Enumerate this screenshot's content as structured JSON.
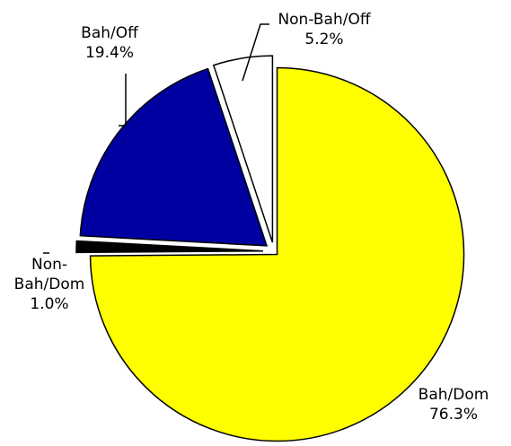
{
  "chart_data": {
    "type": "pie",
    "categories": [
      "Bah/Dom",
      "Non-Bah/Dom",
      "Bah/Off",
      "Non-Bah/Off"
    ],
    "values": [
      76.3,
      1.0,
      19.4,
      5.2
    ],
    "value_labels": [
      "76.3%",
      "1.0%",
      "19.4%",
      "5.2%"
    ],
    "colors": [
      "#ffff00",
      "#000000",
      "#0000a0",
      "#ffffff"
    ]
  }
}
